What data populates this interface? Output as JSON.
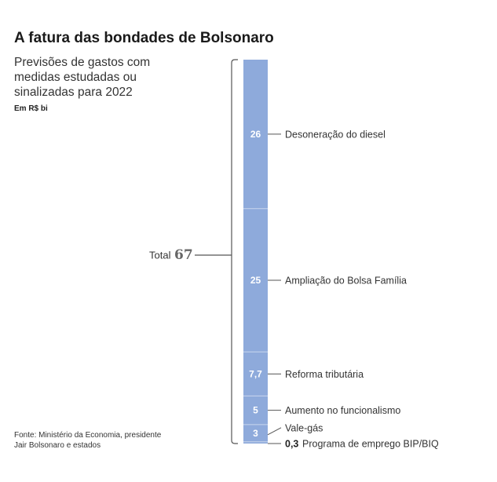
{
  "title": "A fatura das bondades de Bolsonaro",
  "subtitle": "Previsões de gastos com medidas estudadas ou sinalizadas para 2022",
  "unit": "Em R$ bi",
  "source": "Fonte: Ministério da Economia, presidente Jair Bolsonaro e estados",
  "total": {
    "label": "Total",
    "value": "67"
  },
  "colors": {
    "bar": "#8eaadb",
    "separator": "#c9d6ee",
    "text_on_bar": "#ffffff",
    "lines": "#555555"
  },
  "chart_data": {
    "type": "bar",
    "stacked": true,
    "orientation": "vertical",
    "unit": "R$ bi",
    "total": 67,
    "categories": [
      "Desoneração do diesel",
      "Ampliação do Bolsa Família",
      "Reforma tributária",
      "Aumento no funcionalismo",
      "Vale-gás",
      "Programa de emprego BIP/BIQ"
    ],
    "values": [
      26,
      25,
      7.7,
      5,
      3,
      0.3
    ],
    "value_labels": [
      "26",
      "25",
      "7,7",
      "5",
      "3",
      "0,3"
    ]
  }
}
